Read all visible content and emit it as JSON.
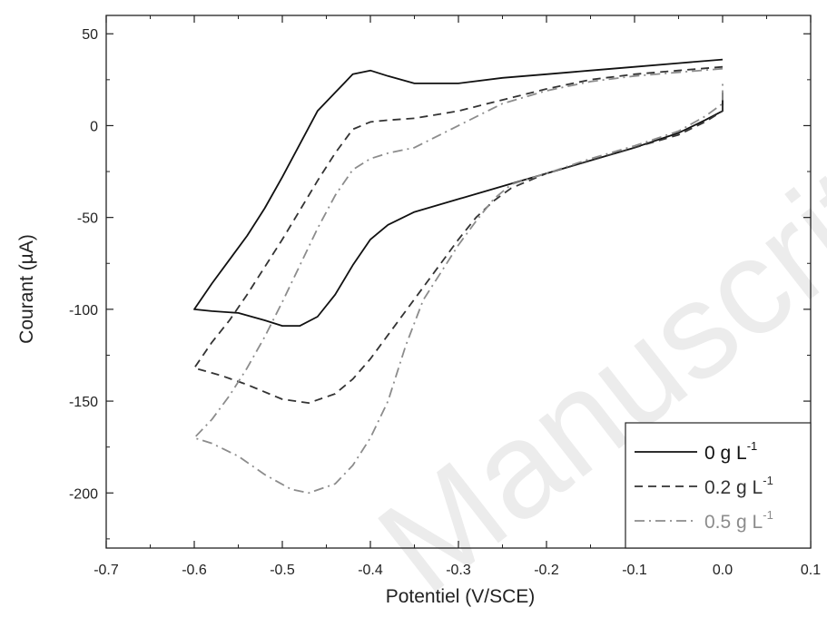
{
  "chart_data": {
    "type": "line",
    "xlabel": "Potentiel (V/SCE)",
    "ylabel": "Courant (µA)",
    "xlim": [
      -0.7,
      0.1
    ],
    "ylim": [
      -230,
      60
    ],
    "x_ticks": [
      -0.7,
      -0.6,
      -0.5,
      -0.4,
      -0.3,
      -0.2,
      -0.1,
      0.0,
      0.1
    ],
    "x_tick_labels": [
      "-0.7",
      "-0.6",
      "-0.5",
      "-0.4",
      "-0.3",
      "-0.2",
      "-0.1",
      "0.0",
      "0.1"
    ],
    "y_ticks": [
      50,
      0,
      -50,
      -100,
      -150,
      -200
    ],
    "y_tick_labels": [
      "50",
      "0",
      "-50",
      "-100",
      "-150",
      "-200"
    ],
    "grid": false,
    "legend_position": "bottom-right",
    "watermark": "Manuscrit",
    "series": [
      {
        "name": "0 g L",
        "superscript": "-1",
        "color": "#111111",
        "dash": "solid",
        "points": [
          [
            0.0,
            36
          ],
          [
            -0.05,
            34
          ],
          [
            -0.1,
            32
          ],
          [
            -0.15,
            30
          ],
          [
            -0.2,
            28
          ],
          [
            -0.25,
            26
          ],
          [
            -0.3,
            23
          ],
          [
            -0.35,
            23
          ],
          [
            -0.38,
            27
          ],
          [
            -0.4,
            30
          ],
          [
            -0.42,
            28
          ],
          [
            -0.44,
            18
          ],
          [
            -0.46,
            8
          ],
          [
            -0.48,
            -10
          ],
          [
            -0.5,
            -28
          ],
          [
            -0.52,
            -45
          ],
          [
            -0.54,
            -60
          ],
          [
            -0.56,
            -73
          ],
          [
            -0.58,
            -86
          ],
          [
            -0.6,
            -100
          ],
          [
            -0.58,
            -101
          ],
          [
            -0.55,
            -102
          ],
          [
            -0.52,
            -106
          ],
          [
            -0.5,
            -109
          ],
          [
            -0.48,
            -109
          ],
          [
            -0.46,
            -104
          ],
          [
            -0.44,
            -92
          ],
          [
            -0.42,
            -76
          ],
          [
            -0.4,
            -62
          ],
          [
            -0.38,
            -54
          ],
          [
            -0.35,
            -47
          ],
          [
            -0.3,
            -40
          ],
          [
            -0.25,
            -33
          ],
          [
            -0.2,
            -26
          ],
          [
            -0.15,
            -19
          ],
          [
            -0.1,
            -12
          ],
          [
            -0.05,
            -4
          ],
          [
            -0.02,
            3
          ],
          [
            0.0,
            8
          ],
          [
            0.0,
            18
          ]
        ]
      },
      {
        "name": "0.2 g L",
        "superscript": "-1",
        "color": "#333333",
        "dash": "dashed",
        "points": [
          [
            0.0,
            32
          ],
          [
            -0.05,
            30
          ],
          [
            -0.1,
            28
          ],
          [
            -0.15,
            25
          ],
          [
            -0.2,
            20
          ],
          [
            -0.25,
            14
          ],
          [
            -0.3,
            8
          ],
          [
            -0.35,
            4
          ],
          [
            -0.38,
            3
          ],
          [
            -0.4,
            2
          ],
          [
            -0.42,
            -2
          ],
          [
            -0.44,
            -15
          ],
          [
            -0.46,
            -30
          ],
          [
            -0.48,
            -46
          ],
          [
            -0.5,
            -62
          ],
          [
            -0.52,
            -77
          ],
          [
            -0.54,
            -92
          ],
          [
            -0.56,
            -106
          ],
          [
            -0.58,
            -118
          ],
          [
            -0.6,
            -132
          ],
          [
            -0.57,
            -136
          ],
          [
            -0.54,
            -141
          ],
          [
            -0.5,
            -149
          ],
          [
            -0.47,
            -151
          ],
          [
            -0.44,
            -146
          ],
          [
            -0.42,
            -138
          ],
          [
            -0.4,
            -127
          ],
          [
            -0.38,
            -114
          ],
          [
            -0.36,
            -101
          ],
          [
            -0.34,
            -88
          ],
          [
            -0.32,
            -75
          ],
          [
            -0.3,
            -62
          ],
          [
            -0.28,
            -50
          ],
          [
            -0.26,
            -41
          ],
          [
            -0.24,
            -34
          ],
          [
            -0.2,
            -26
          ],
          [
            -0.15,
            -19
          ],
          [
            -0.1,
            -12
          ],
          [
            -0.05,
            -5
          ],
          [
            -0.02,
            2
          ],
          [
            0.0,
            8
          ],
          [
            0.0,
            17
          ]
        ]
      },
      {
        "name": "0.5 g L",
        "superscript": "-1",
        "color": "#8c8c8c",
        "dash": "dashdot",
        "points": [
          [
            0.0,
            31
          ],
          [
            -0.05,
            29
          ],
          [
            -0.1,
            27
          ],
          [
            -0.15,
            24
          ],
          [
            -0.2,
            19
          ],
          [
            -0.25,
            12
          ],
          [
            -0.3,
            0
          ],
          [
            -0.35,
            -12
          ],
          [
            -0.38,
            -15
          ],
          [
            -0.4,
            -18
          ],
          [
            -0.42,
            -24
          ],
          [
            -0.44,
            -38
          ],
          [
            -0.46,
            -56
          ],
          [
            -0.48,
            -76
          ],
          [
            -0.5,
            -96
          ],
          [
            -0.52,
            -115
          ],
          [
            -0.54,
            -132
          ],
          [
            -0.56,
            -147
          ],
          [
            -0.58,
            -160
          ],
          [
            -0.6,
            -170
          ],
          [
            -0.58,
            -173
          ],
          [
            -0.55,
            -180
          ],
          [
            -0.52,
            -190
          ],
          [
            -0.49,
            -198
          ],
          [
            -0.47,
            -200
          ],
          [
            -0.44,
            -195
          ],
          [
            -0.42,
            -185
          ],
          [
            -0.4,
            -170
          ],
          [
            -0.38,
            -150
          ],
          [
            -0.36,
            -120
          ],
          [
            -0.34,
            -95
          ],
          [
            -0.32,
            -80
          ],
          [
            -0.3,
            -65
          ],
          [
            -0.28,
            -52
          ],
          [
            -0.26,
            -40
          ],
          [
            -0.24,
            -32
          ],
          [
            -0.2,
            -26
          ],
          [
            -0.15,
            -18
          ],
          [
            -0.1,
            -11
          ],
          [
            -0.05,
            -3
          ],
          [
            -0.02,
            5
          ],
          [
            0.0,
            12
          ],
          [
            0.0,
            25
          ]
        ]
      }
    ]
  }
}
